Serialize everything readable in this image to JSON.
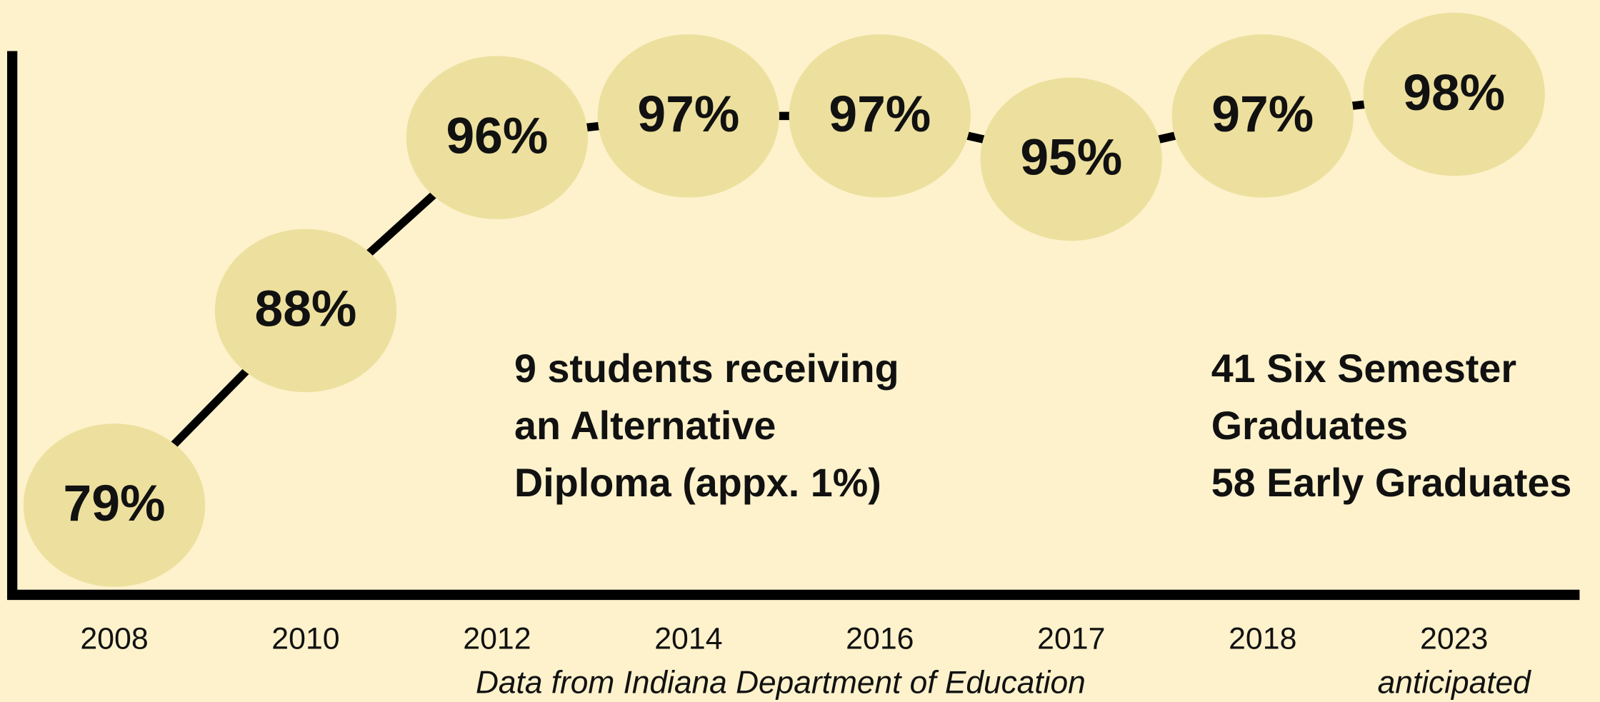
{
  "chart_data": {
    "type": "line",
    "categories": [
      "2008",
      "2010",
      "2012",
      "2014",
      "2016",
      "2017",
      "2018",
      "2023"
    ],
    "values": [
      79,
      88,
      96,
      97,
      97,
      95,
      97,
      98
    ],
    "value_labels": [
      "79%",
      "88%",
      "96%",
      "97%",
      "97%",
      "95%",
      "97%",
      "98%"
    ],
    "ylim": [
      75,
      100
    ],
    "bubble_color": "#ede09e",
    "line_color": "#000000",
    "annotations": [
      {
        "lines": [
          "9 students receiving",
          "an Alternative",
          "Diploma (appx. 1%)"
        ]
      },
      {
        "lines": [
          "41 Six Semester",
          "Graduates",
          "58 Early Graduates"
        ]
      }
    ],
    "last_category_note": "anticipated",
    "source": "Data from Indiana Department of Education"
  }
}
